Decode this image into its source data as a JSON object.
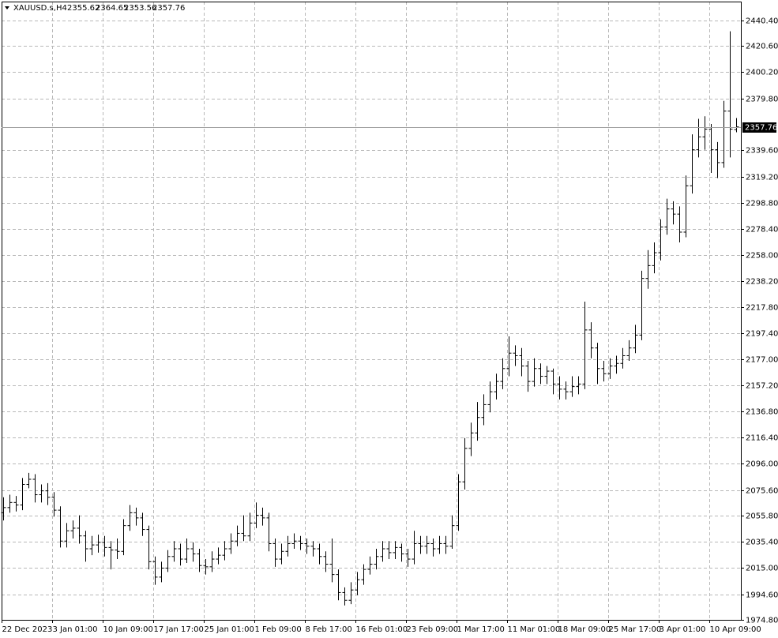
{
  "chart_data": {
    "type": "ohlc",
    "title": "XAUUSD.s,H4",
    "categories": [
      "22 Dec 2023",
      null,
      null,
      null,
      null,
      null,
      null,
      null,
      "3 Jan 01:00",
      null,
      null,
      null,
      null,
      null,
      null,
      null,
      "10 Jan 09:00",
      null,
      null,
      null,
      null,
      null,
      null,
      null,
      "17 Jan 17:00",
      null,
      null,
      null,
      null,
      null,
      null,
      null,
      "25 Jan 01:00",
      null,
      null,
      null,
      null,
      null,
      null,
      null,
      "1 Feb 09:00",
      null,
      null,
      null,
      null,
      null,
      null,
      null,
      "8 Feb 17:00",
      null,
      null,
      null,
      null,
      null,
      null,
      null,
      "16 Feb 01:00",
      null,
      null,
      null,
      null,
      null,
      null,
      null,
      "23 Feb 09:00",
      null,
      null,
      null,
      null,
      null,
      null,
      null,
      "1 Mar 17:00",
      null,
      null,
      null,
      null,
      null,
      null,
      null,
      "11 Mar 01:00",
      null,
      null,
      null,
      null,
      null,
      null,
      null,
      "18 Mar 09:00",
      null,
      null,
      null,
      null,
      null,
      null,
      null,
      "25 Mar 17:00",
      null,
      null,
      null,
      null,
      null,
      null,
      null,
      "3 Apr 01:00",
      null,
      null,
      null,
      null,
      null,
      null,
      null,
      "10 Apr 09:00",
      null,
      null,
      null,
      null
    ],
    "series": [
      {
        "color": "#000000",
        "open": [
          2058,
          2062,
          2066,
          2064,
          2080,
          2084,
          2072,
          2075,
          2070,
          2060,
          2036,
          2044,
          2046,
          2040,
          2030,
          2033,
          2035,
          2031,
          2029,
          2028,
          2048,
          2058,
          2054,
          2045,
          2020,
          2008,
          2015,
          2024,
          2030,
          2022,
          2030,
          2026,
          2017,
          2016,
          2022,
          2025,
          2030,
          2036,
          2042,
          2040,
          2050,
          2056,
          2054,
          2034,
          2022,
          2028,
          2034,
          2036,
          2034,
          2032,
          2030,
          2024,
          2018,
          2010,
          1996,
          1990,
          1998,
          2006,
          2014,
          2018,
          2024,
          2030,
          2027,
          2031,
          2026,
          2022,
          2034,
          2032,
          2034,
          2030,
          2034,
          2032,
          2048,
          2082,
          2108,
          2120,
          2132,
          2142,
          2152,
          2160,
          2170,
          2182,
          2180,
          2172,
          2160,
          2170,
          2164,
          2168,
          2158,
          2154,
          2152,
          2156,
          2158,
          2200,
          2186,
          2170,
          2166,
          2172,
          2174,
          2180,
          2186,
          2196,
          2240,
          2250,
          2260,
          2280,
          2294,
          2290,
          2276,
          2312,
          2340,
          2350,
          2356,
          2340,
          2330,
          2370,
          2355.62
        ],
        "high": [
          2070,
          2072,
          2071,
          2085,
          2089,
          2088,
          2080,
          2081,
          2074,
          2063,
          2050,
          2052,
          2056,
          2044,
          2040,
          2041,
          2040,
          2036,
          2038,
          2053,
          2064,
          2062,
          2058,
          2048,
          2024,
          2020,
          2029,
          2036,
          2034,
          2038,
          2035,
          2030,
          2022,
          2028,
          2031,
          2036,
          2042,
          2048,
          2056,
          2058,
          2066,
          2062,
          2058,
          2038,
          2034,
          2040,
          2042,
          2040,
          2038,
          2036,
          2034,
          2028,
          2038,
          2014,
          2000,
          2004,
          2012,
          2018,
          2024,
          2030,
          2036,
          2036,
          2036,
          2034,
          2030,
          2044,
          2040,
          2040,
          2038,
          2040,
          2040,
          2056,
          2088,
          2116,
          2128,
          2144,
          2150,
          2160,
          2166,
          2178,
          2195,
          2188,
          2186,
          2176,
          2178,
          2174,
          2172,
          2170,
          2164,
          2160,
          2164,
          2164,
          2222,
          2206,
          2190,
          2176,
          2178,
          2180,
          2186,
          2192,
          2204,
          2246,
          2262,
          2268,
          2286,
          2302,
          2300,
          2296,
          2320,
          2352,
          2364,
          2366,
          2360,
          2346,
          2378,
          2432,
          2364.65
        ],
        "low": [
          2052,
          2058,
          2059,
          2060,
          2077,
          2066,
          2066,
          2064,
          2055,
          2031,
          2031,
          2038,
          2034,
          2020,
          2025,
          2027,
          2024,
          2014,
          2022,
          2025,
          2044,
          2048,
          2040,
          2014,
          2002,
          2004,
          2012,
          2020,
          2017,
          2019,
          2020,
          2012,
          2010,
          2012,
          2018,
          2021,
          2026,
          2032,
          2036,
          2036,
          2046,
          2048,
          2028,
          2016,
          2018,
          2024,
          2030,
          2029,
          2026,
          2024,
          2018,
          2012,
          2004,
          1990,
          1986,
          1987,
          1994,
          2002,
          2010,
          2014,
          2020,
          2022,
          2022,
          2020,
          2016,
          2018,
          2026,
          2026,
          2024,
          2026,
          2026,
          2030,
          2044,
          2076,
          2102,
          2114,
          2126,
          2136,
          2146,
          2154,
          2164,
          2172,
          2164,
          2152,
          2156,
          2158,
          2158,
          2150,
          2146,
          2146,
          2148,
          2150,
          2154,
          2178,
          2158,
          2160,
          2162,
          2166,
          2170,
          2176,
          2182,
          2192,
          2232,
          2244,
          2254,
          2274,
          2282,
          2268,
          2272,
          2306,
          2334,
          2340,
          2322,
          2318,
          2326,
          2334,
          2353.56
        ],
        "close": [
          2062,
          2066,
          2064,
          2080,
          2084,
          2072,
          2075,
          2070,
          2060,
          2036,
          2044,
          2046,
          2040,
          2030,
          2033,
          2035,
          2031,
          2029,
          2028,
          2048,
          2058,
          2054,
          2045,
          2020,
          2008,
          2015,
          2024,
          2030,
          2022,
          2030,
          2026,
          2017,
          2016,
          2022,
          2025,
          2030,
          2036,
          2042,
          2040,
          2050,
          2056,
          2054,
          2034,
          2022,
          2028,
          2034,
          2036,
          2034,
          2032,
          2030,
          2024,
          2018,
          2010,
          1996,
          1990,
          1998,
          2006,
          2014,
          2018,
          2024,
          2030,
          2027,
          2031,
          2026,
          2022,
          2034,
          2032,
          2034,
          2030,
          2034,
          2032,
          2048,
          2082,
          2108,
          2120,
          2132,
          2142,
          2152,
          2160,
          2170,
          2182,
          2180,
          2172,
          2160,
          2170,
          2164,
          2168,
          2158,
          2154,
          2152,
          2156,
          2158,
          2200,
          2186,
          2170,
          2166,
          2172,
          2174,
          2180,
          2186,
          2196,
          2240,
          2250,
          2260,
          2280,
          2294,
          2290,
          2276,
          2312,
          2340,
          2350,
          2356,
          2340,
          2330,
          2370,
          2356,
          2357.76
        ]
      }
    ],
    "ylim": [
      1974.8,
      2455.1
    ],
    "yticks": [
      {
        "value": 1974.8,
        "label": "1974.80"
      },
      {
        "value": 1994.6,
        "label": "1994.60"
      },
      {
        "value": 2015,
        "label": "2015.00"
      },
      {
        "value": 2035.4,
        "label": "2035.40"
      },
      {
        "value": 2055.8,
        "label": "2055.80"
      },
      {
        "value": 2075.6,
        "label": "2075.60"
      },
      {
        "value": 2096,
        "label": "2096.00"
      },
      {
        "value": 2116.4,
        "label": "2116.40"
      },
      {
        "value": 2136.8,
        "label": "2136.80"
      },
      {
        "value": 2157.2,
        "label": "2157.20"
      },
      {
        "value": 2177,
        "label": "2177.00"
      },
      {
        "value": 2197.4,
        "label": "2197.40"
      },
      {
        "value": 2217.8,
        "label": "2217.80"
      },
      {
        "value": 2238.2,
        "label": "2238.20"
      },
      {
        "value": 2258,
        "label": "2258.00"
      },
      {
        "value": 2278.4,
        "label": "2278.40"
      },
      {
        "value": 2298.8,
        "label": "2298.80"
      },
      {
        "value": 2319.2,
        "label": "2319.20"
      },
      {
        "value": 2339.6,
        "label": "2339.60"
      },
      {
        "value": 2379.8,
        "label": "2379.80"
      },
      {
        "value": 2400.2,
        "label": "2400.20"
      },
      {
        "value": 2420.6,
        "label": "2420.60"
      },
      {
        "value": 2440.4,
        "label": "2440.40"
      }
    ],
    "grid": true
  }
}
